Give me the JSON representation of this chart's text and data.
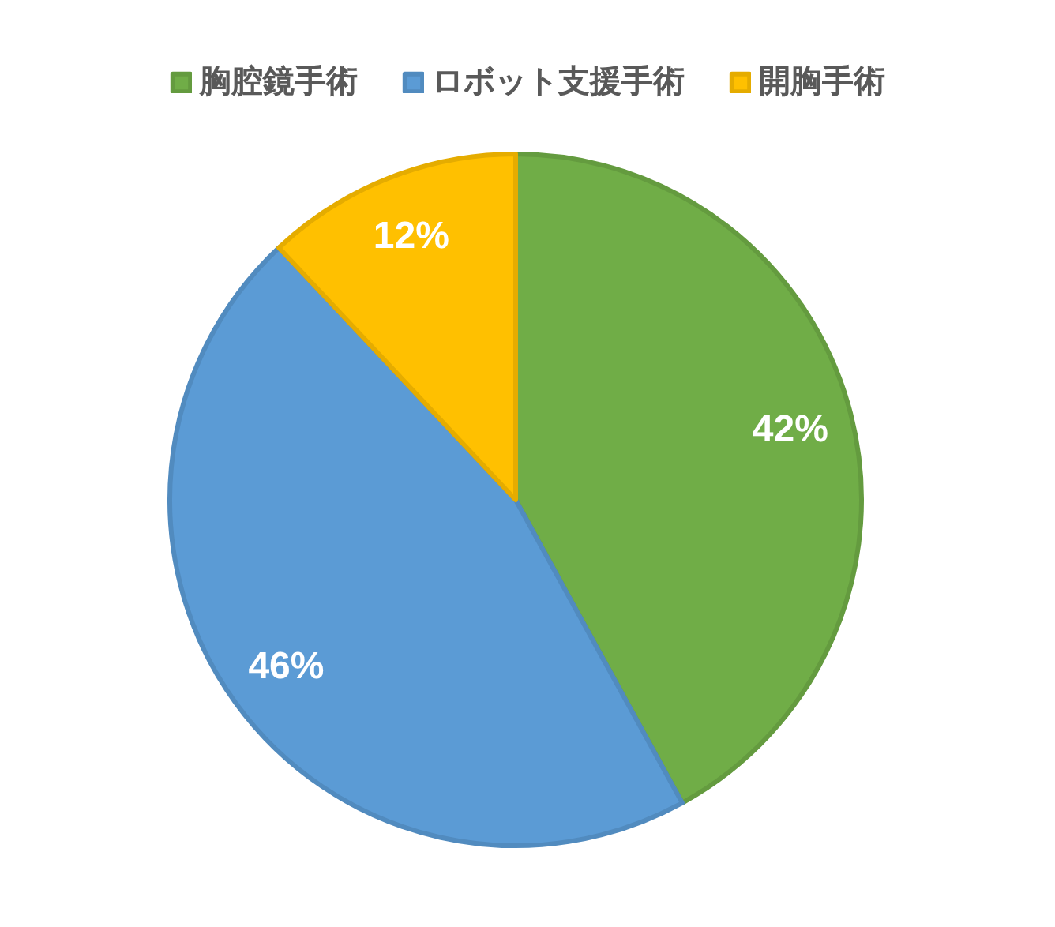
{
  "chart_data": {
    "type": "pie",
    "categories": [
      "胸腔鏡手術",
      "ロボット支援手術",
      "開胸手術"
    ],
    "values": [
      42,
      46,
      12
    ],
    "colors": [
      "#70ad47",
      "#5b9bd5",
      "#ffc000"
    ],
    "value_labels": [
      "42%",
      "46%",
      "12%"
    ],
    "legend": "top"
  }
}
